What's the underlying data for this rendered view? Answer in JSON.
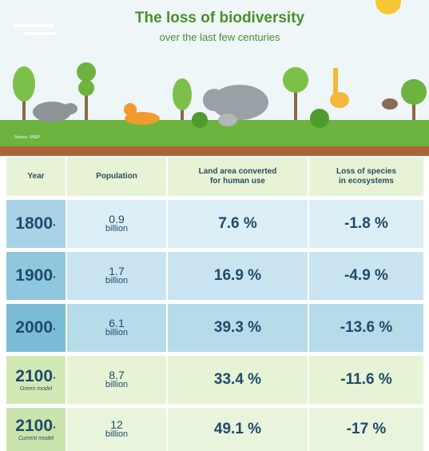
{
  "header": {
    "title": "The loss of biodiversity",
    "subtitle": "over the last few centuries",
    "source": "Source: UNEP"
  },
  "table": {
    "columns": [
      [
        "Year"
      ],
      [
        "Population"
      ],
      [
        "Land area converted",
        "for human use"
      ],
      [
        "Loss of species",
        "in ecosystems"
      ]
    ],
    "rows": [
      {
        "year": "1800",
        "population": "0.9",
        "unit": "billion",
        "land": "7.6 %",
        "loss": "-1.8 %"
      },
      {
        "year": "1900",
        "population": "1.7",
        "unit": "billion",
        "land": "16.9 %",
        "loss": "-4.9 %"
      },
      {
        "year": "2000",
        "population": "6.1",
        "unit": "billion",
        "land": "39.3 %",
        "loss": "-13.6 %"
      },
      {
        "year": "2100",
        "model": "Green model",
        "population": "8.7",
        "unit": "billion",
        "land": "33.4 %",
        "loss": "-11.6 %"
      },
      {
        "year": "2100",
        "model": "Current model",
        "population": "12",
        "unit": "billion",
        "land": "49.1 %",
        "loss": "-17 %"
      }
    ]
  }
}
